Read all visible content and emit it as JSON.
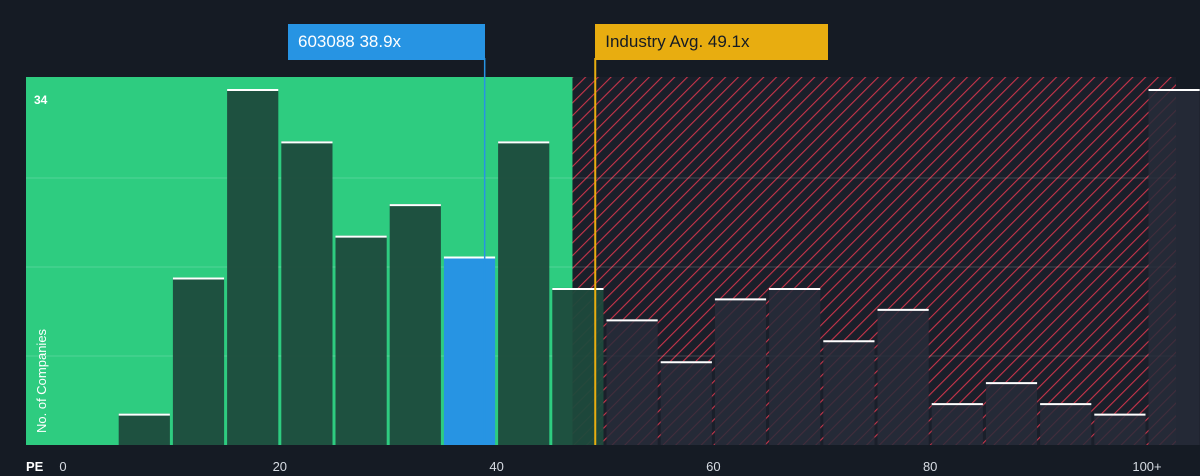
{
  "chart_data": {
    "type": "bar",
    "xlabel": "PE",
    "ylabel": "No. of Companies",
    "x_tick_labels": [
      "0",
      "20",
      "40",
      "60",
      "80",
      "100+"
    ],
    "x_ticks": [
      0,
      20,
      40,
      60,
      80,
      100
    ],
    "xlim": [
      0,
      102
    ],
    "ylim": [
      0,
      34
    ],
    "y_max_label": "34",
    "bin_width": 5,
    "bins": [
      {
        "start": 0,
        "value": 0
      },
      {
        "start": 5,
        "value": 3
      },
      {
        "start": 10,
        "value": 16
      },
      {
        "start": 15,
        "value": 34
      },
      {
        "start": 20,
        "value": 29
      },
      {
        "start": 25,
        "value": 20
      },
      {
        "start": 30,
        "value": 23
      },
      {
        "start": 35,
        "value": 18
      },
      {
        "start": 40,
        "value": 29
      },
      {
        "start": 45,
        "value": 15
      },
      {
        "start": 50,
        "value": 12
      },
      {
        "start": 55,
        "value": 8
      },
      {
        "start": 60,
        "value": 14
      },
      {
        "start": 65,
        "value": 15
      },
      {
        "start": 70,
        "value": 10
      },
      {
        "start": 75,
        "value": 13
      },
      {
        "start": 80,
        "value": 4
      },
      {
        "start": 85,
        "value": 6
      },
      {
        "start": 90,
        "value": 4
      },
      {
        "start": 95,
        "value": 3
      },
      {
        "start": 100,
        "value": 34
      }
    ],
    "company": {
      "label": "603088 38.9x",
      "value": 38.9
    },
    "industry": {
      "label": "Industry Avg. 49.1x",
      "value": 49.1
    },
    "fair_zone_end": 47,
    "colors": {
      "background": "#151b24",
      "fair_zone": "#2ecc80",
      "bar": "#1e4a3c",
      "bar_top": "#ffffff",
      "company_bar": "#2794e3",
      "industry": "#e8ad10",
      "hatch": "#c8344a"
    }
  }
}
